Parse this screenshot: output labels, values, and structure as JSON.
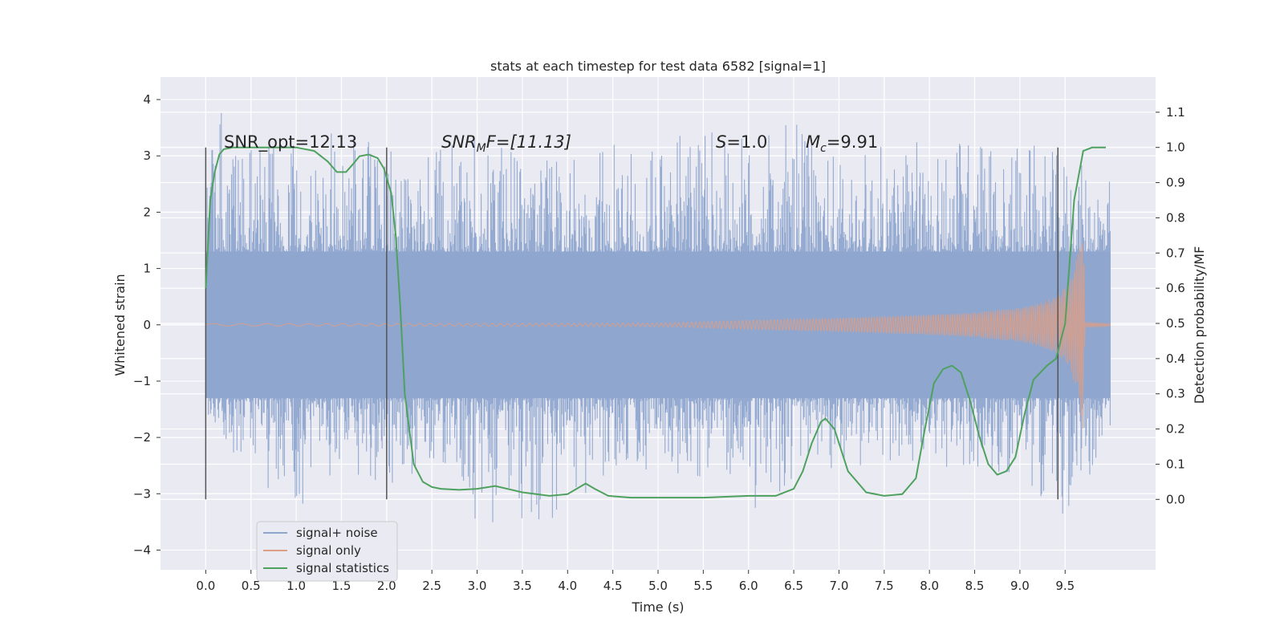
{
  "chart_data": {
    "type": "line",
    "title": "stats at each timestep for test data 6582 [signal=1]",
    "xlabel": "Time (s)",
    "ylabel": "Whitened strain",
    "ylabel_right": "Detection probability/MF",
    "xlim": [
      -0.5,
      10.5
    ],
    "ylim": [
      -4.35,
      4.4
    ],
    "ylim_right": [
      -0.2,
      1.2
    ],
    "x_ticks": [
      "0.0",
      "0.5",
      "1.0",
      "1.5",
      "2.0",
      "2.5",
      "3.0",
      "3.5",
      "4.0",
      "4.5",
      "5.0",
      "5.5",
      "6.0",
      "6.5",
      "7.0",
      "7.5",
      "8.0",
      "8.5",
      "9.0",
      "9.5"
    ],
    "y_ticks": [
      "4",
      "3",
      "2",
      "1",
      "0",
      "−1",
      "−2",
      "−3",
      "−4"
    ],
    "y_right_ticks": [
      "1.1",
      "1.0",
      "0.9",
      "0.8",
      "0.7",
      "0.6",
      "0.5",
      "0.4",
      "0.3",
      "0.2",
      "0.1",
      "0.0"
    ],
    "grid": true,
    "legend_position": "lower-left",
    "annotations": {
      "snr_opt": "SNR_opt=12.13",
      "snr_mf_main": "SNR",
      "snr_mf_sub": "M",
      "snr_mf_rest": "F=[11.13]",
      "s_italic": "S",
      "s_rest": "=1.0",
      "mc_main": "M",
      "mc_sub": "c",
      "mc_rest": "=9.91"
    },
    "vertical_markers_x": [
      0.0,
      2.0,
      9.42
    ],
    "series": [
      {
        "name": "signal+ noise",
        "color": "#8fa6cf",
        "description_range": "noise envelope approx -3.6 to 4.05",
        "envelope_x": [
          0.0,
          0.5,
          1.0,
          1.5,
          2.0,
          2.5,
          3.0,
          3.5,
          4.0,
          4.5,
          5.0,
          5.5,
          6.0,
          6.5,
          7.0,
          7.5,
          8.0,
          8.5,
          9.0,
          9.5,
          10.0
        ],
        "envelope_upper": [
          4.05,
          3.3,
          3.5,
          3.4,
          3.2,
          3.1,
          3.5,
          3.2,
          3.0,
          3.2,
          3.3,
          3.5,
          3.3,
          3.6,
          3.0,
          3.2,
          3.3,
          3.4,
          3.3,
          3.0,
          2.6
        ],
        "envelope_lower": [
          -1.6,
          -2.7,
          -3.3,
          -2.6,
          -2.9,
          -2.5,
          -3.9,
          -3.6,
          -3.4,
          -2.5,
          -2.6,
          -2.7,
          -3.4,
          -2.8,
          -2.5,
          -2.6,
          -2.5,
          -2.7,
          -2.6,
          -3.6,
          -1.9
        ]
      },
      {
        "name": "signal only",
        "color": "#dd9f85",
        "x": [
          0.0,
          5.0,
          6.0,
          7.0,
          8.0,
          8.5,
          9.0,
          9.2,
          9.4,
          9.55,
          9.65,
          9.7,
          9.72,
          10.0
        ],
        "amplitude": [
          0.02,
          0.03,
          0.08,
          0.12,
          0.18,
          0.22,
          0.3,
          0.38,
          0.5,
          0.75,
          1.3,
          1.9,
          0.05,
          0.02
        ]
      },
      {
        "name": "signal statistics",
        "color": "#4fa15f",
        "axis": "right",
        "x": [
          0.0,
          0.05,
          0.1,
          0.15,
          0.2,
          0.3,
          0.5,
          1.0,
          1.2,
          1.35,
          1.45,
          1.55,
          1.62,
          1.7,
          1.8,
          1.9,
          1.97,
          2.05,
          2.1,
          2.15,
          2.2,
          2.3,
          2.4,
          2.5,
          2.6,
          2.8,
          3.0,
          3.2,
          3.5,
          3.8,
          4.0,
          4.1,
          4.2,
          4.3,
          4.45,
          4.7,
          5.0,
          5.5,
          6.0,
          6.3,
          6.5,
          6.6,
          6.7,
          6.8,
          6.85,
          6.95,
          7.1,
          7.3,
          7.5,
          7.7,
          7.85,
          7.95,
          8.05,
          8.15,
          8.25,
          8.35,
          8.45,
          8.55,
          8.65,
          8.75,
          8.85,
          8.95,
          9.05,
          9.15,
          9.3,
          9.4,
          9.5,
          9.6,
          9.7,
          9.8,
          9.95
        ],
        "values": [
          0.6,
          0.85,
          0.93,
          0.98,
          0.995,
          1.0,
          1.0,
          1.0,
          0.99,
          0.96,
          0.93,
          0.93,
          0.95,
          0.975,
          0.98,
          0.97,
          0.94,
          0.87,
          0.75,
          0.55,
          0.3,
          0.1,
          0.05,
          0.035,
          0.03,
          0.027,
          0.03,
          0.038,
          0.02,
          0.01,
          0.015,
          0.03,
          0.045,
          0.03,
          0.01,
          0.005,
          0.005,
          0.005,
          0.01,
          0.01,
          0.03,
          0.08,
          0.16,
          0.22,
          0.23,
          0.2,
          0.08,
          0.02,
          0.01,
          0.015,
          0.06,
          0.2,
          0.33,
          0.37,
          0.38,
          0.36,
          0.28,
          0.18,
          0.1,
          0.07,
          0.08,
          0.12,
          0.24,
          0.34,
          0.38,
          0.4,
          0.5,
          0.85,
          0.99,
          1.0,
          1.0
        ]
      }
    ]
  }
}
